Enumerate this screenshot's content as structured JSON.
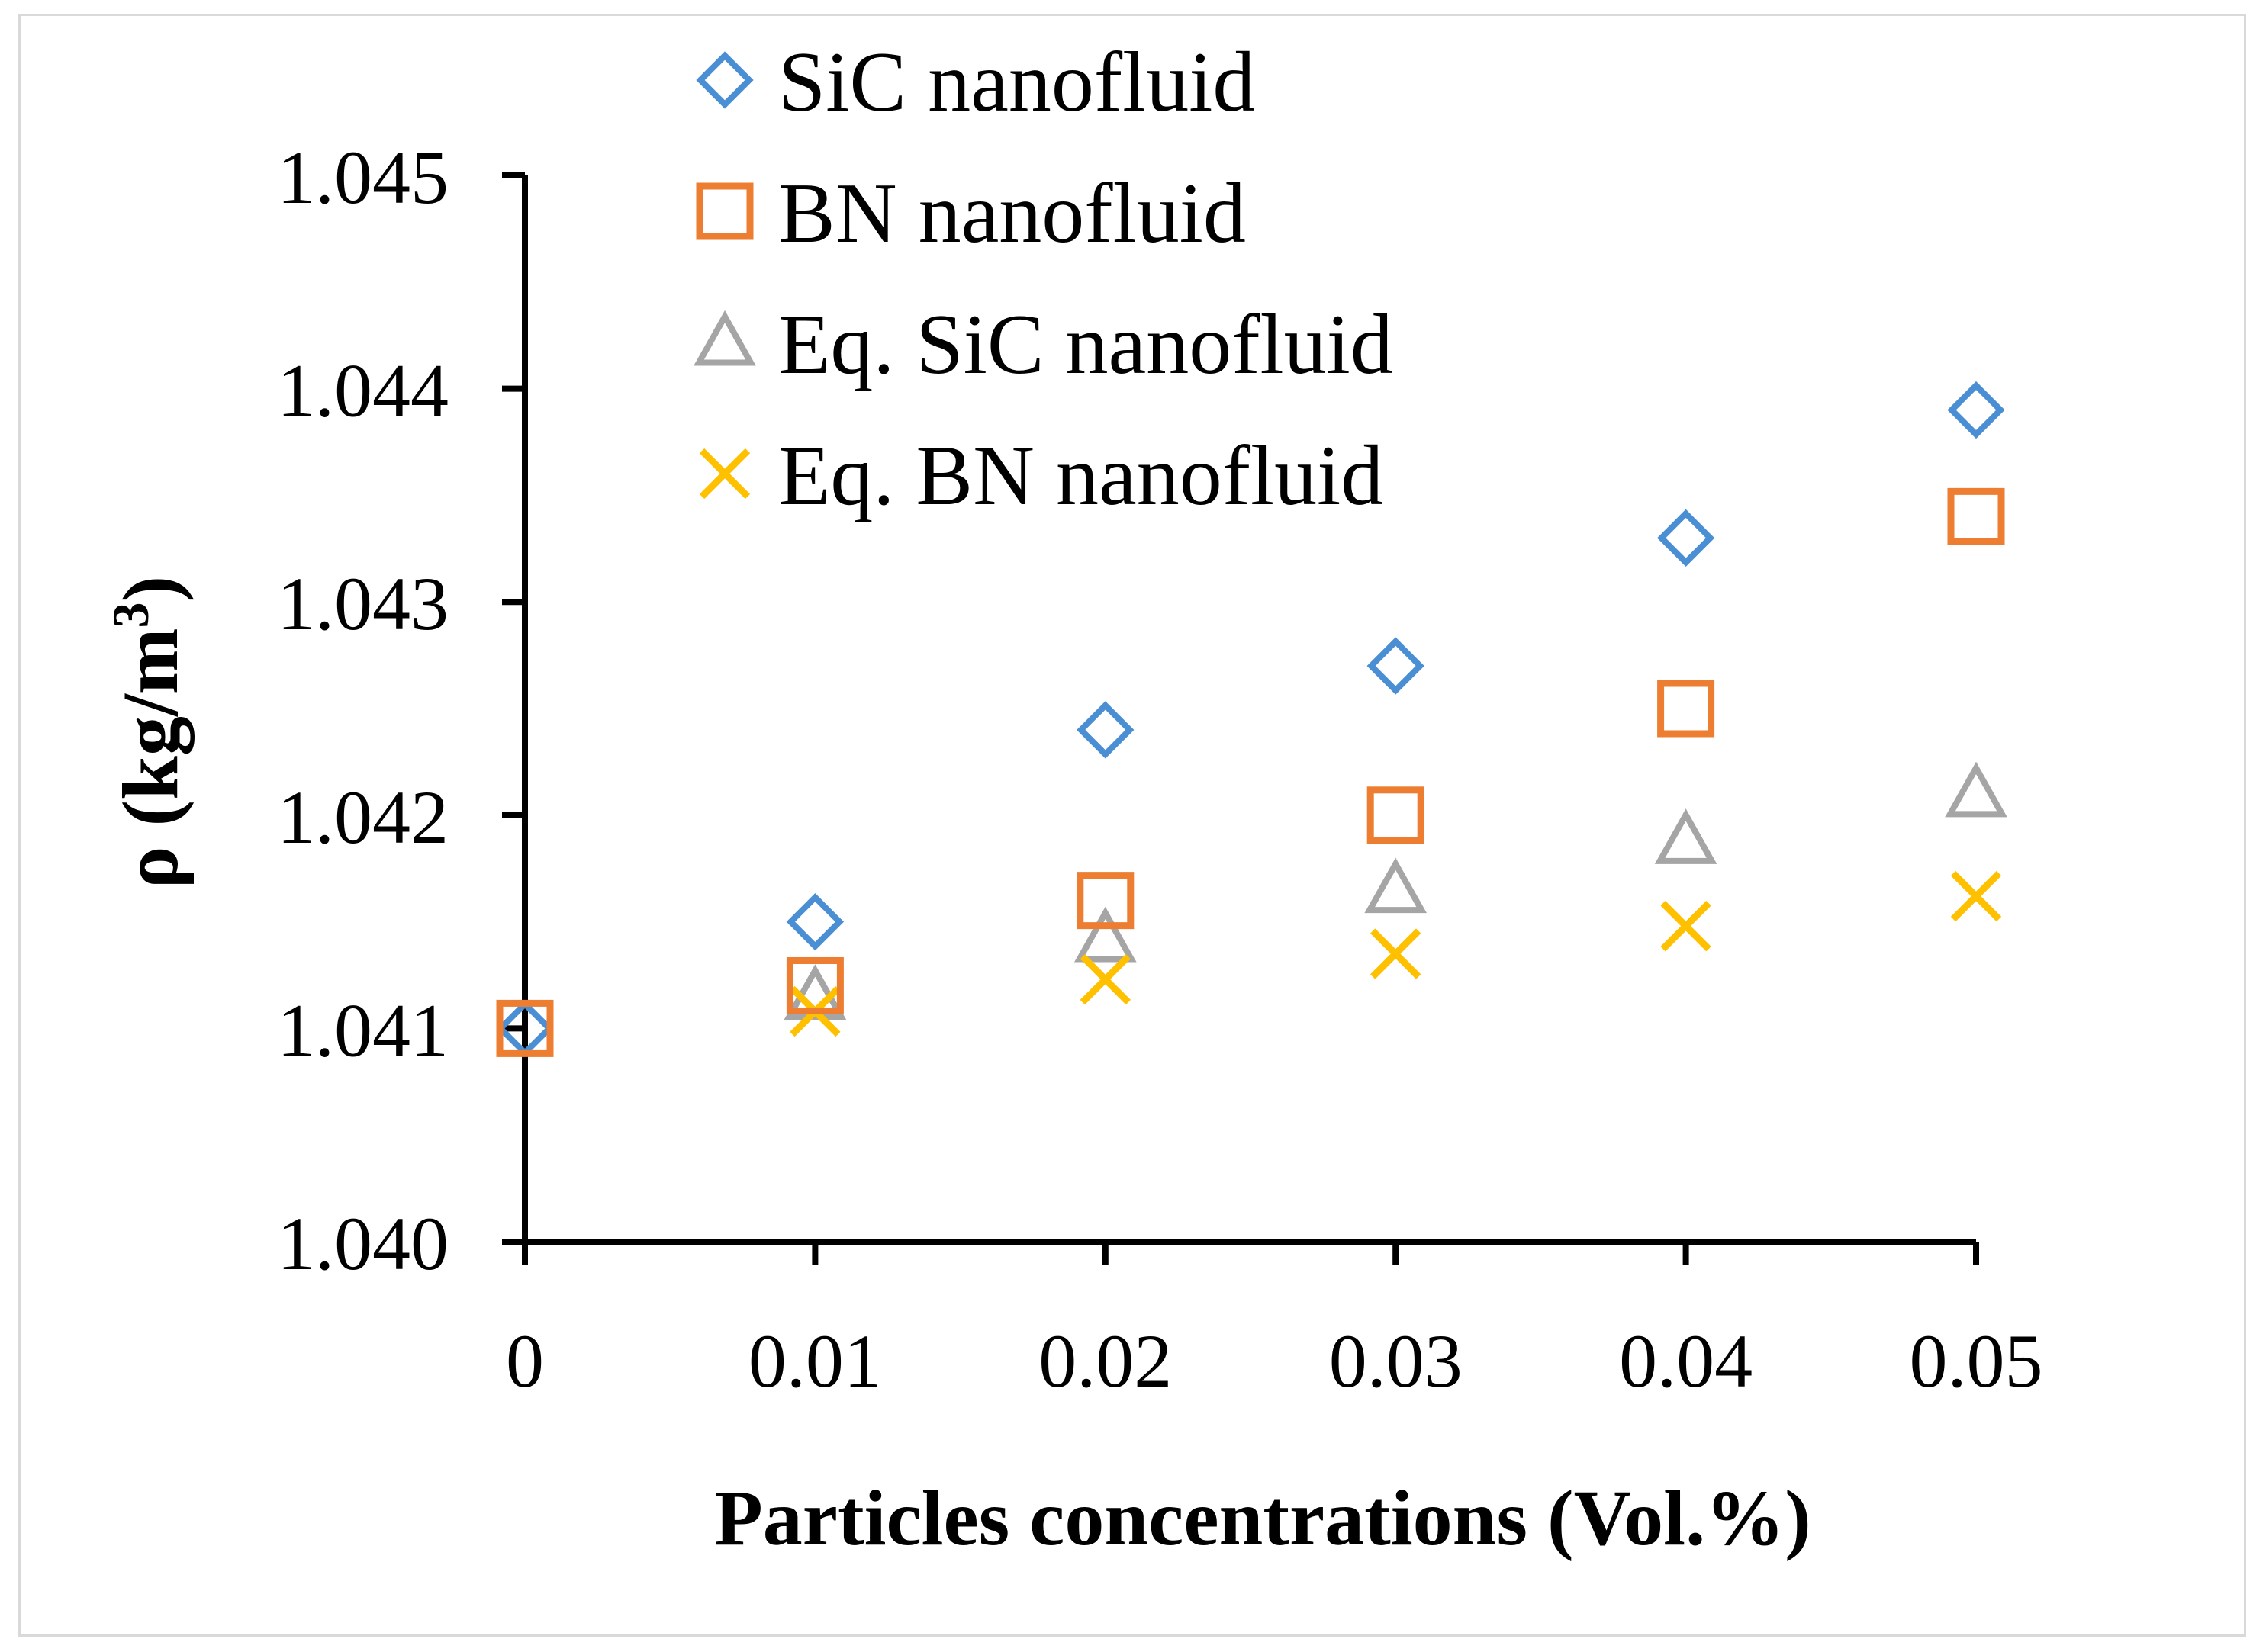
{
  "chart_data": {
    "type": "scatter",
    "title": "",
    "xlabel": "Particles concentrations (Vol.%)",
    "ylabel_main": "ρ (kg/m",
    "ylabel_sup": "3",
    "ylabel_close": ")",
    "ylim": [
      1.04,
      1.045
    ],
    "xlim": [
      0,
      0.05
    ],
    "x_ticks": [
      "0",
      "0.01",
      "0.02",
      "0.03",
      "0.04",
      "0.05"
    ],
    "x_tick_values": [
      0,
      0.01,
      0.02,
      0.03,
      0.04,
      0.05
    ],
    "y_ticks": [
      "1.040",
      "1.041",
      "1.042",
      "1.043",
      "1.044",
      "1.045"
    ],
    "y_tick_values": [
      1.04,
      1.041,
      1.042,
      1.043,
      1.044,
      1.045
    ],
    "grid": false,
    "legend_position": "top-center",
    "series": [
      {
        "name": "SiC nanofluid",
        "marker": "diamond",
        "color": "#4a8fd4",
        "points": [
          [
            0,
            1.041
          ],
          [
            0.01,
            1.0415
          ],
          [
            0.02,
            1.0424
          ],
          [
            0.03,
            1.0427
          ],
          [
            0.04,
            1.0433
          ],
          [
            0.05,
            1.0439
          ]
        ]
      },
      {
        "name": "BN nanofluid",
        "marker": "square",
        "color": "#ed7d31",
        "points": [
          [
            0,
            1.041
          ],
          [
            0.01,
            1.0412
          ],
          [
            0.02,
            1.0416
          ],
          [
            0.03,
            1.042
          ],
          [
            0.04,
            1.0425
          ],
          [
            0.05,
            1.0434
          ]
        ]
      },
      {
        "name": "Eq. SiC nanofluid",
        "marker": "triangle",
        "color": "#a5a5a5",
        "points": [
          [
            0.01,
            1.04115
          ],
          [
            0.02,
            1.04142
          ],
          [
            0.03,
            1.04165
          ],
          [
            0.04,
            1.04188
          ],
          [
            0.05,
            1.0421
          ]
        ]
      },
      {
        "name": "Eq. BN nanofluid",
        "marker": "cross",
        "color": "#ffc000",
        "points": [
          [
            0.01,
            1.04108
          ],
          [
            0.02,
            1.04123
          ],
          [
            0.03,
            1.04135
          ],
          [
            0.04,
            1.04148
          ],
          [
            0.05,
            1.04162
          ]
        ]
      }
    ]
  }
}
